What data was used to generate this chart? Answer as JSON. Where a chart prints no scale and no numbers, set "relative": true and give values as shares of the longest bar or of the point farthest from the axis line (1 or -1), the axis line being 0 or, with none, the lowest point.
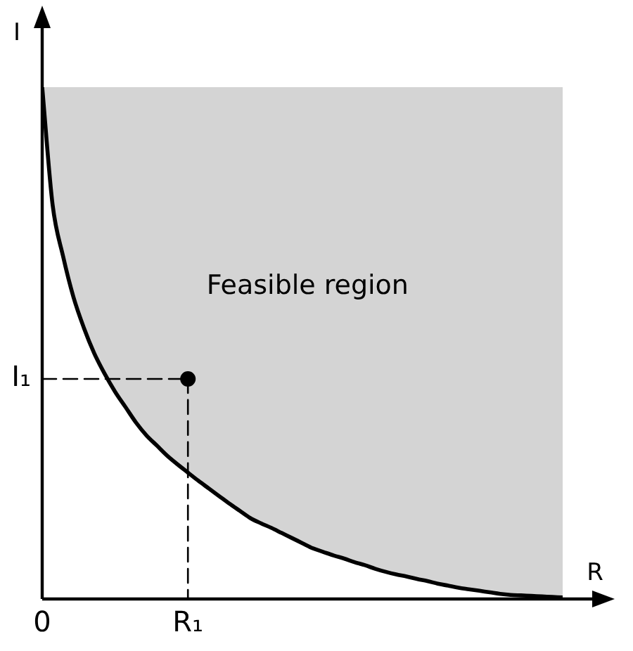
{
  "chart_data": {
    "type": "line",
    "relative": true,
    "xlabel": "R",
    "ylabel": "I",
    "categories": [
      "0",
      null,
      null,
      null,
      null,
      null,
      null,
      null,
      null,
      null,
      null,
      null,
      null,
      null,
      "R₁",
      null,
      null,
      null,
      null,
      null,
      null,
      null,
      null,
      null,
      null,
      null,
      null,
      null,
      null,
      null,
      null,
      null,
      null,
      null,
      null,
      null,
      null,
      null,
      null,
      null,
      null,
      null,
      null,
      null,
      null,
      null,
      null,
      null,
      null,
      null,
      null
    ],
    "annotations": [
      "Feasible region"
    ],
    "series": [
      {
        "color": "#000000",
        "values": [
          1,
          0.77,
          0.67,
          0.59,
          0.53,
          0.48,
          0.44,
          0.405,
          0.375,
          0.345,
          0.32,
          0.3,
          0.28,
          0.263,
          0.247,
          0.231,
          0.216,
          0.201,
          0.186,
          0.172,
          0.158,
          0.148,
          0.139,
          0.129,
          0.119,
          0.109,
          0.099,
          0.092,
          0.085,
          0.079,
          0.072,
          0.066,
          0.059,
          0.053,
          0.048,
          0.044,
          0.039,
          0.035,
          0.03,
          0.026,
          0.022,
          0.019,
          0.016,
          0.013,
          0.01,
          0.008,
          0.007,
          0.006,
          0.005,
          0.004,
          0.003
        ],
        "lower": [
          1,
          0.77,
          0.67,
          0.59,
          0.53,
          0.48,
          0.44,
          0.405,
          0.375,
          0.345,
          0.32,
          0.3,
          0.28,
          0.263,
          0.247,
          0.231,
          0.216,
          0.201,
          0.186,
          0.172,
          0.158,
          0.148,
          0.139,
          0.129,
          0.119,
          0.109,
          0.099,
          0.092,
          0.085,
          0.079,
          0.072,
          0.066,
          0.059,
          0.053,
          0.048,
          0.044,
          0.039,
          0.035,
          0.03,
          0.026,
          0.022,
          0.019,
          0.016,
          0.013,
          0.01,
          0.008,
          0.007,
          0.006,
          0.005,
          0.004,
          0.003
        ],
        "upper": [
          1,
          1,
          1,
          1,
          1,
          1,
          1,
          1,
          1,
          1,
          1,
          1,
          1,
          1,
          1,
          1,
          1,
          1,
          1,
          1,
          1,
          1,
          1,
          1,
          1,
          1,
          1,
          1,
          1,
          1,
          1,
          1,
          1,
          1,
          1,
          1,
          1,
          1,
          1,
          1,
          1,
          1,
          1,
          1,
          1,
          1,
          1,
          1,
          1,
          1,
          1
        ]
      },
      {
        "type": "line",
        "name": "I₁",
        "line_style": "dashed",
        "color": "#000000",
        "x": [
          "0",
          "R₁"
        ],
        "values": [
          0.43,
          0.43
        ]
      },
      {
        "type": "line",
        "line_style": "dashed",
        "color": "#000000",
        "x": [
          "R₁",
          "R₁"
        ],
        "values": [
          0.43,
          0
        ]
      },
      {
        "type": "scatter",
        "marker": "circle",
        "color": "#000000",
        "x": [
          "R₁"
        ],
        "values": [
          0.43
        ]
      }
    ]
  }
}
